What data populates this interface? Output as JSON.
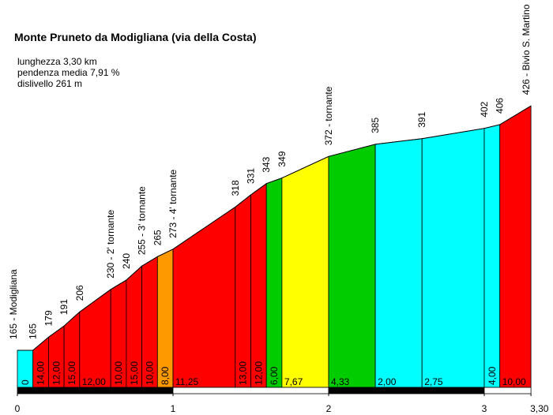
{
  "chart_data": {
    "type": "area",
    "title": "Monte Pruneto da Modigliana (via della Costa)",
    "stats": [
      "lunghezza 3,30 km",
      "pendenza media 7,91 %",
      "dislivello 261 m"
    ],
    "profile": [
      {
        "x": 0.0,
        "alt": 165
      },
      {
        "x": 0.1,
        "alt": 165
      },
      {
        "x": 0.2,
        "alt": 179
      },
      {
        "x": 0.3,
        "alt": 191
      },
      {
        "x": 0.4,
        "alt": 206
      },
      {
        "x": 0.6,
        "alt": 230
      },
      {
        "x": 0.7,
        "alt": 240
      },
      {
        "x": 0.8,
        "alt": 255
      },
      {
        "x": 0.9,
        "alt": 265
      },
      {
        "x": 1.0,
        "alt": 273
      },
      {
        "x": 1.4,
        "alt": 318
      },
      {
        "x": 1.5,
        "alt": 331
      },
      {
        "x": 1.6,
        "alt": 343
      },
      {
        "x": 1.7,
        "alt": 349
      },
      {
        "x": 2.0,
        "alt": 372
      },
      {
        "x": 2.3,
        "alt": 385
      },
      {
        "x": 2.6,
        "alt": 391
      },
      {
        "x": 3.0,
        "alt": 402
      },
      {
        "x": 3.1,
        "alt": 406
      },
      {
        "x": 3.3,
        "alt": 426
      }
    ],
    "segments": [
      {
        "from": 0.0,
        "to": 0.1,
        "gradient": "0",
        "color": "#00ffff"
      },
      {
        "from": 0.1,
        "to": 0.2,
        "gradient": "14,00",
        "color": "#ff0000"
      },
      {
        "from": 0.2,
        "to": 0.3,
        "gradient": "12,00",
        "color": "#ff0000"
      },
      {
        "from": 0.3,
        "to": 0.4,
        "gradient": "15,00",
        "color": "#ff0000"
      },
      {
        "from": 0.4,
        "to": 0.6,
        "gradient": "12,00",
        "color": "#ff0000"
      },
      {
        "from": 0.6,
        "to": 0.7,
        "gradient": "10,00",
        "color": "#ff0000"
      },
      {
        "from": 0.7,
        "to": 0.8,
        "gradient": "15,00",
        "color": "#ff0000"
      },
      {
        "from": 0.8,
        "to": 0.9,
        "gradient": "10,00",
        "color": "#ff0000"
      },
      {
        "from": 0.9,
        "to": 1.0,
        "gradient": "8,00",
        "color": "#ff9900"
      },
      {
        "from": 1.0,
        "to": 1.4,
        "gradient": "11,25",
        "color": "#ff0000"
      },
      {
        "from": 1.4,
        "to": 1.5,
        "gradient": "13,00",
        "color": "#ff0000"
      },
      {
        "from": 1.5,
        "to": 1.6,
        "gradient": "12,00",
        "color": "#ff0000"
      },
      {
        "from": 1.6,
        "to": 1.7,
        "gradient": "6,00",
        "color": "#00cc00"
      },
      {
        "from": 1.7,
        "to": 2.0,
        "gradient": "7,67",
        "color": "#ffff00"
      },
      {
        "from": 2.0,
        "to": 2.3,
        "gradient": "4,33",
        "color": "#00cc00"
      },
      {
        "from": 2.3,
        "to": 2.6,
        "gradient": "2,00",
        "color": "#00ffff"
      },
      {
        "from": 2.6,
        "to": 3.0,
        "gradient": "2,75",
        "color": "#00ffff"
      },
      {
        "from": 3.0,
        "to": 3.1,
        "gradient": "4,00",
        "color": "#00ffff"
      },
      {
        "from": 3.1,
        "to": 3.3,
        "gradient": "10,00",
        "color": "#ff0000"
      }
    ],
    "point_labels": [
      {
        "x": 0.0,
        "text": "165 - Modigliana"
      },
      {
        "x": 0.1,
        "text": "165"
      },
      {
        "x": 0.2,
        "text": "179"
      },
      {
        "x": 0.3,
        "text": "191"
      },
      {
        "x": 0.4,
        "text": "206"
      },
      {
        "x": 0.6,
        "text": "230 - 2' tornante"
      },
      {
        "x": 0.7,
        "text": "240"
      },
      {
        "x": 0.8,
        "text": "255 - 3' tornante"
      },
      {
        "x": 0.9,
        "text": "265"
      },
      {
        "x": 1.0,
        "text": "273 - 4' tornante"
      },
      {
        "x": 1.4,
        "text": "318"
      },
      {
        "x": 1.5,
        "text": "331"
      },
      {
        "x": 1.6,
        "text": "343"
      },
      {
        "x": 1.7,
        "text": "349"
      },
      {
        "x": 2.0,
        "text": "372 - tornante"
      },
      {
        "x": 2.3,
        "text": "385"
      },
      {
        "x": 2.6,
        "text": "391"
      },
      {
        "x": 3.0,
        "text": "402"
      },
      {
        "x": 3.1,
        "text": "406"
      },
      {
        "x": 3.3,
        "text": "426 - Bivio S. Martino"
      }
    ],
    "x_ticks": [
      {
        "x": 0,
        "label": "0"
      },
      {
        "x": 1,
        "label": "1"
      },
      {
        "x": 2,
        "label": "2"
      },
      {
        "x": 3,
        "label": "3"
      },
      {
        "x": 3.3,
        "label": "3,30"
      }
    ],
    "xlim": [
      0,
      3.3
    ],
    "ylim": [
      165,
      426
    ],
    "scale_bar_colors": [
      "#000000",
      "#ffffff"
    ]
  }
}
